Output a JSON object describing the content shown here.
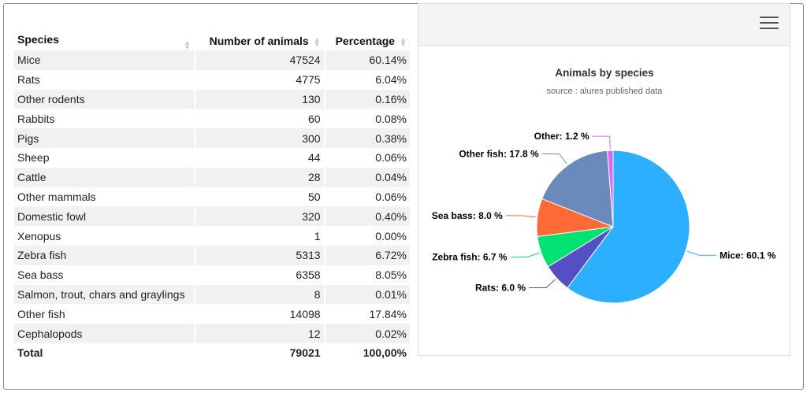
{
  "table": {
    "headers": [
      "Species",
      "Number of animals",
      "Percentage"
    ],
    "rows": [
      {
        "species": "Mice",
        "count": "47524",
        "pct": "60.14%"
      },
      {
        "species": "Rats",
        "count": "4775",
        "pct": "6.04%"
      },
      {
        "species": "Other rodents",
        "count": "130",
        "pct": "0.16%"
      },
      {
        "species": "Rabbits",
        "count": "60",
        "pct": "0.08%"
      },
      {
        "species": "Pigs",
        "count": "300",
        "pct": "0.38%"
      },
      {
        "species": "Sheep",
        "count": "44",
        "pct": "0.06%"
      },
      {
        "species": "Cattle",
        "count": "28",
        "pct": "0.04%"
      },
      {
        "species": "Other mammals",
        "count": "50",
        "pct": "0.06%"
      },
      {
        "species": "Domestic fowl",
        "count": "320",
        "pct": "0.40%"
      },
      {
        "species": "Xenopus",
        "count": "1",
        "pct": "0.00%"
      },
      {
        "species": "Zebra fish",
        "count": "5313",
        "pct": "6.72%"
      },
      {
        "species": "Sea bass",
        "count": "6358",
        "pct": "8.05%"
      },
      {
        "species": "Salmon, trout, chars and graylings",
        "count": "8",
        "pct": "0.01%"
      },
      {
        "species": "Other fish",
        "count": "14098",
        "pct": "17.84%"
      },
      {
        "species": "Cephalopods",
        "count": "12",
        "pct": "0.02%"
      }
    ],
    "total": {
      "species": "Total",
      "count": "79021",
      "pct": "100,00%"
    }
  },
  "chart_panel": {
    "menu_icon": "hamburger-menu-icon"
  },
  "chart_data": {
    "type": "pie",
    "title": "Animals by species",
    "subtitle": "source : alures published data",
    "slices": [
      {
        "name": "Mice",
        "value": 60.1,
        "label": "Mice: 60.1 %",
        "color": "#2caffe"
      },
      {
        "name": "Rats",
        "value": 6.0,
        "label": "Rats: 6.0 %",
        "color": "#544fc5"
      },
      {
        "name": "Zebra fish",
        "value": 6.7,
        "label": "Zebra fish: 6.7 %",
        "color": "#00e272"
      },
      {
        "name": "Sea bass",
        "value": 8.0,
        "label": "Sea bass: 8.0 %",
        "color": "#fe6a35"
      },
      {
        "name": "Other fish",
        "value": 17.8,
        "label": "Other fish: 17.8 %",
        "color": "#6b8abc"
      },
      {
        "name": "Other",
        "value": 1.2,
        "label": "Other: 1.2 %",
        "color": "#d568fb"
      }
    ]
  }
}
